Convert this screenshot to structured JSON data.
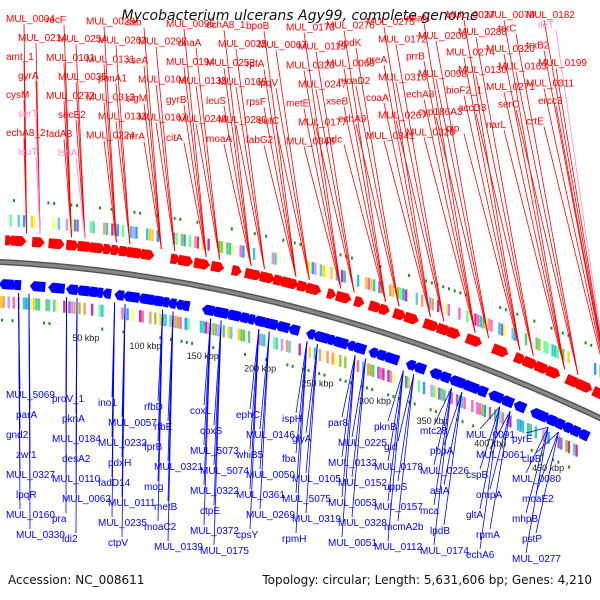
{
  "title": "Mycobacterium ulcerans Agy99, complete genome",
  "footer": {
    "accession": "Accession: NC_008611",
    "stats": "Topology: circular; Length: 5,631,606 bp; Genes: 4,210"
  },
  "colors": {
    "forward": "#ff0000",
    "reverse": "#0000ff",
    "backbone": "#888888",
    "rna_label": "#ff88cc",
    "orf_dots": "#2a8a2a"
  },
  "ticks": [
    "50 kbp",
    "100 kbp",
    "150 kbp",
    "200 kbp",
    "250 kbp",
    "300 kbp",
    "350 kbp",
    "400 kbp",
    "450 kbp"
  ],
  "top_labels": [
    {
      "t": "MUL_0004",
      "c": "r"
    },
    {
      "t": "recF",
      "c": "r"
    },
    {
      "t": "MUL_0029",
      "c": "r"
    },
    {
      "t": "ssb",
      "c": "r"
    },
    {
      "t": "MUL_0095",
      "c": "r"
    },
    {
      "t": "echA8_1",
      "c": "r"
    },
    {
      "t": "bpoB",
      "c": "r"
    },
    {
      "t": "MUL_0173",
      "c": "r"
    },
    {
      "t": "MUL_0276",
      "c": "r"
    },
    {
      "t": "MUL_0275",
      "c": "r"
    },
    {
      "t": "dnaN",
      "c": "r"
    },
    {
      "t": "MUL_0027",
      "c": "r"
    },
    {
      "t": "MUL_0070",
      "c": "r"
    },
    {
      "t": "MUL_0182",
      "c": "r"
    },
    {
      "t": "MUL_0214",
      "c": "r"
    },
    {
      "t": "MUL_0254",
      "c": "r"
    },
    {
      "t": "MUL_0263",
      "c": "r"
    },
    {
      "t": "MUL_0297",
      "c": "r"
    },
    {
      "t": "dnaA",
      "c": "r"
    },
    {
      "t": "MUL_0025",
      "c": "r"
    },
    {
      "t": "MUL_0067",
      "c": "r"
    },
    {
      "t": "MUL_0119",
      "c": "r"
    },
    {
      "t": "ppdK",
      "c": "r"
    },
    {
      "t": "MUL_0172",
      "c": "r"
    },
    {
      "t": "MUL_0206",
      "c": "r"
    },
    {
      "t": "MUL_0288",
      "c": "r"
    },
    {
      "t": "trxC",
      "c": "r"
    },
    {
      "t": "ileT",
      "c": "p"
    },
    {
      "t": "amt_1",
      "c": "r"
    },
    {
      "t": "MUL_0101",
      "c": "r"
    },
    {
      "t": "MUL_0131",
      "c": "r"
    },
    {
      "t": "xseA",
      "c": "r"
    },
    {
      "t": "MUL_0194",
      "c": "r"
    },
    {
      "t": "MUL_0253",
      "c": "r"
    },
    {
      "t": "rpfA",
      "c": "r"
    },
    {
      "t": "MUL_0323",
      "c": "r"
    },
    {
      "t": "MUL_0069",
      "c": "r"
    },
    {
      "t": "greA",
      "c": "r"
    },
    {
      "t": "prrB",
      "c": "r"
    },
    {
      "t": "MUL_0274",
      "c": "r"
    },
    {
      "t": "MUL_0320",
      "c": "r"
    },
    {
      "t": "trxB2",
      "c": "r"
    },
    {
      "t": "gyrA",
      "c": "r"
    },
    {
      "t": "MUL_0035",
      "c": "r"
    },
    {
      "t": "ponA1",
      "c": "r"
    },
    {
      "t": "MUL_0104",
      "c": "r"
    },
    {
      "t": "MUL_0135",
      "c": "r"
    },
    {
      "t": "MUL_0169",
      "c": "r"
    },
    {
      "t": "lpqV",
      "c": "r"
    },
    {
      "t": "MUL_0247",
      "c": "r"
    },
    {
      "t": "moaD2",
      "c": "r"
    },
    {
      "t": "MUL_0316",
      "c": "r"
    },
    {
      "t": "MUL_0098",
      "c": "r"
    },
    {
      "t": "MUL_0130",
      "c": "r"
    },
    {
      "t": "MUL_0163",
      "c": "r"
    },
    {
      "t": "MUL_0199",
      "c": "r"
    },
    {
      "t": "cysM",
      "c": "r"
    },
    {
      "t": "MUL_0272",
      "c": "r"
    },
    {
      "t": "MUL_0313",
      "c": "r"
    },
    {
      "t": "sigM",
      "c": "r"
    },
    {
      "t": "gyrB",
      "c": "r"
    },
    {
      "t": "leuS",
      "c": "r"
    },
    {
      "t": "rpsF",
      "c": "r"
    },
    {
      "t": "metE",
      "c": "r"
    },
    {
      "t": "xseB",
      "c": "r"
    },
    {
      "t": "coaA",
      "c": "r"
    },
    {
      "t": "echA8",
      "c": "r"
    },
    {
      "t": "bioF2_1",
      "c": "r"
    },
    {
      "t": "MUL_0271",
      "c": "r"
    },
    {
      "t": "MUL_0311",
      "c": "r"
    },
    {
      "t": "serT",
      "c": "p"
    },
    {
      "t": "secE2",
      "c": "r"
    },
    {
      "t": "MUL_0133",
      "c": "r"
    },
    {
      "t": "MUL_0167",
      "c": "r"
    },
    {
      "t": "MUL_0240",
      "c": "r"
    },
    {
      "t": "MUL_0280",
      "c": "r"
    },
    {
      "t": "eutC",
      "c": "r"
    },
    {
      "t": "MUL_0177",
      "c": "r"
    },
    {
      "t": "echA9",
      "c": "r"
    },
    {
      "t": "MUL_0267",
      "c": "r"
    },
    {
      "t": "cyp186A3",
      "c": "r"
    },
    {
      "t": "accD3",
      "c": "r"
    },
    {
      "t": "serC",
      "c": "r"
    },
    {
      "t": "ercc3",
      "c": "r"
    },
    {
      "t": "echA8_2",
      "c": "r"
    },
    {
      "t": "fadA3",
      "c": "r"
    },
    {
      "t": "MUL_0224",
      "c": "r"
    },
    {
      "t": "nrrA",
      "c": "r"
    },
    {
      "t": "citA",
      "c": "r"
    },
    {
      "t": "moaA",
      "c": "r"
    },
    {
      "t": "fabG2",
      "c": "r"
    },
    {
      "t": "MUL_0348",
      "c": "r"
    },
    {
      "t": "pdc",
      "c": "r"
    },
    {
      "t": "MUL_0341",
      "c": "r"
    },
    {
      "t": "MUL_0326",
      "c": "r"
    },
    {
      "t": "pip",
      "c": "r"
    },
    {
      "t": "narL",
      "c": "r"
    },
    {
      "t": "crtE",
      "c": "r"
    },
    {
      "t": "leuT",
      "c": "p"
    },
    {
      "t": "lspA",
      "c": "p"
    }
  ],
  "bottom_labels": [
    {
      "t": "MUL_5069",
      "c": "b"
    },
    {
      "t": "proV_1",
      "c": "b"
    },
    {
      "t": "ino1",
      "c": "b"
    },
    {
      "t": "rfbD",
      "c": "b"
    },
    {
      "t": "coxL",
      "c": "b"
    },
    {
      "t": "ephC",
      "c": "b"
    },
    {
      "t": "ispH",
      "c": "b"
    },
    {
      "t": "par8",
      "c": "b"
    },
    {
      "t": "pknB",
      "c": "b"
    },
    {
      "t": "mtc28",
      "c": "b"
    },
    {
      "t": "MUL_0091",
      "c": "b"
    },
    {
      "t": "pyrE",
      "c": "b"
    },
    {
      "t": "parA",
      "c": "b"
    },
    {
      "t": "pknA",
      "c": "b"
    },
    {
      "t": "MUL_0057",
      "c": "b"
    },
    {
      "t": "rfbE",
      "c": "b"
    },
    {
      "t": "coxS",
      "c": "b"
    },
    {
      "t": "MUL_0146",
      "c": "b"
    },
    {
      "t": "glyA",
      "c": "b"
    },
    {
      "t": "MUL_0225",
      "c": "b"
    },
    {
      "t": "gid",
      "c": "b"
    },
    {
      "t": "pbpA",
      "c": "b"
    },
    {
      "t": "MUL_0061",
      "c": "b"
    },
    {
      "t": "clpB",
      "c": "b"
    },
    {
      "t": "gnd2",
      "c": "b"
    },
    {
      "t": "MUL_0184",
      "c": "b"
    },
    {
      "t": "MUL_0232",
      "c": "b"
    },
    {
      "t": "fprB",
      "c": "b"
    },
    {
      "t": "MUL_5073",
      "c": "b"
    },
    {
      "t": "whiB5",
      "c": "b"
    },
    {
      "t": "fba",
      "c": "b"
    },
    {
      "t": "MUL_0132",
      "c": "b"
    },
    {
      "t": "MUL_0178",
      "c": "b"
    },
    {
      "t": "MUL_0226",
      "c": "b"
    },
    {
      "t": "cspB",
      "c": "b"
    },
    {
      "t": "MUL_0080",
      "c": "b"
    },
    {
      "t": "zwf1",
      "c": "b"
    },
    {
      "t": "desA2",
      "c": "b"
    },
    {
      "t": "pdxH",
      "c": "b"
    },
    {
      "t": "MUL_0321",
      "c": "b"
    },
    {
      "t": "MUL_5074",
      "c": "b"
    },
    {
      "t": "MUL_0050",
      "c": "b"
    },
    {
      "t": "MUL_0105",
      "c": "b"
    },
    {
      "t": "MUL_0152",
      "c": "b"
    },
    {
      "t": "uppS",
      "c": "b"
    },
    {
      "t": "aslA",
      "c": "b"
    },
    {
      "t": "ompA",
      "c": "b"
    },
    {
      "t": "moaE2",
      "c": "b"
    },
    {
      "t": "MUL_0327",
      "c": "b"
    },
    {
      "t": "MUL_0110",
      "c": "b"
    },
    {
      "t": "fadD14",
      "c": "b"
    },
    {
      "t": "mog",
      "c": "b"
    },
    {
      "t": "MUL_0322",
      "c": "b"
    },
    {
      "t": "MUL_0361",
      "c": "b"
    },
    {
      "t": "MUL_5075",
      "c": "b"
    },
    {
      "t": "MUL_0053",
      "c": "b"
    },
    {
      "t": "MUL_0157",
      "c": "b"
    },
    {
      "t": "mca",
      "c": "b"
    },
    {
      "t": "gltA",
      "c": "b"
    },
    {
      "t": "mhpB",
      "c": "b"
    },
    {
      "t": "lpqR",
      "c": "b"
    },
    {
      "t": "MUL_0062",
      "c": "b"
    },
    {
      "t": "MUL_0111",
      "c": "b"
    },
    {
      "t": "metB",
      "c": "b"
    },
    {
      "t": "ctpE",
      "c": "b"
    },
    {
      "t": "MUL_0269",
      "c": "b"
    },
    {
      "t": "MUL_0319",
      "c": "b"
    },
    {
      "t": "MUL_0328",
      "c": "b"
    },
    {
      "t": "mcmA2b",
      "c": "b"
    },
    {
      "t": "lpdB",
      "c": "b"
    },
    {
      "t": "rpmA",
      "c": "b"
    },
    {
      "t": "pstP",
      "c": "b"
    },
    {
      "t": "MUL_0160",
      "c": "b"
    },
    {
      "t": "pra",
      "c": "b"
    },
    {
      "t": "MUL_0235",
      "c": "b"
    },
    {
      "t": "moaC2",
      "c": "b"
    },
    {
      "t": "MUL_0372",
      "c": "b"
    },
    {
      "t": "cpsY",
      "c": "b"
    },
    {
      "t": "rpmH",
      "c": "b"
    },
    {
      "t": "MUL_0051",
      "c": "b"
    },
    {
      "t": "MUL_0112",
      "c": "b"
    },
    {
      "t": "MUL_0174",
      "c": "b"
    },
    {
      "t": "echA6",
      "c": "b"
    },
    {
      "t": "MUL_0277",
      "c": "b"
    },
    {
      "t": "MUL_0330",
      "c": "b"
    },
    {
      "t": "idi2",
      "c": "b"
    },
    {
      "t": "ctpV",
      "c": "b"
    },
    {
      "t": "MUL_0139",
      "c": "b"
    },
    {
      "t": "MUL_0175",
      "c": "b"
    }
  ]
}
